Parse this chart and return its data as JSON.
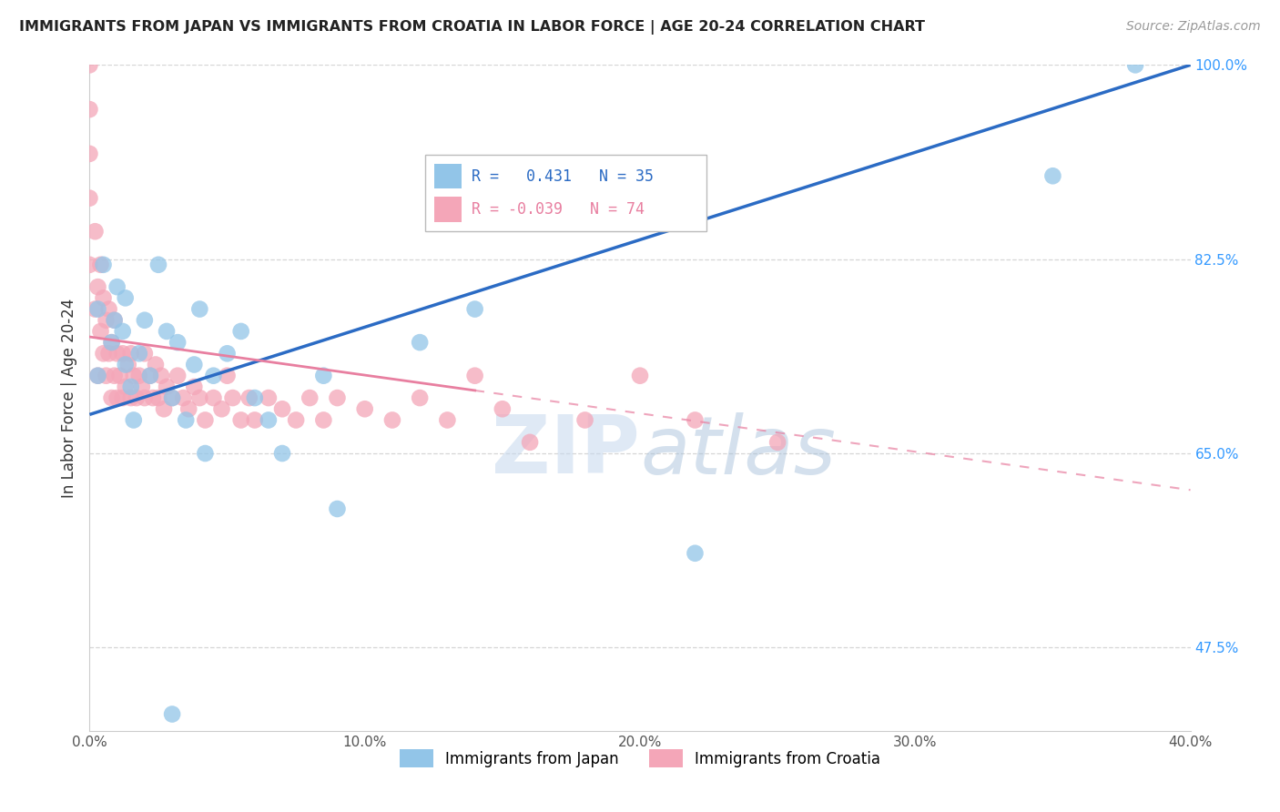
{
  "title": "IMMIGRANTS FROM JAPAN VS IMMIGRANTS FROM CROATIA IN LABOR FORCE | AGE 20-24 CORRELATION CHART",
  "source": "Source: ZipAtlas.com",
  "ylabel_label": "In Labor Force | Age 20-24",
  "xlim": [
    0.0,
    0.4
  ],
  "ylim": [
    0.4,
    1.0
  ],
  "xtick_values": [
    0.0,
    0.1,
    0.2,
    0.3,
    0.4
  ],
  "xtick_labels": [
    "0.0%",
    "10.0%",
    "20.0%",
    "30.0%",
    "40.0%"
  ],
  "ytick_right_values": [
    0.475,
    0.65,
    0.825,
    1.0
  ],
  "ytick_right_labels": [
    "47.5%",
    "65.0%",
    "82.5%",
    "100.0%"
  ],
  "japan_color": "#92c5e8",
  "croatia_color": "#f4a6b8",
  "japan_R": 0.431,
  "japan_N": 35,
  "croatia_R": -0.039,
  "croatia_N": 74,
  "japan_line_color": "#2b6bc4",
  "croatia_line_color": "#e87fa0",
  "grid_color": "#cccccc",
  "background_color": "#ffffff",
  "watermark_zip": "ZIP",
  "watermark_atlas": "atlas",
  "legend_japan_label": "Immigrants from Japan",
  "legend_croatia_label": "Immigrants from Croatia",
  "japan_line_x0": 0.0,
  "japan_line_y0": 0.685,
  "japan_line_x1": 0.4,
  "japan_line_y1": 1.0,
  "croatia_line_x0": 0.0,
  "croatia_line_y0": 0.755,
  "croatia_line_x1": 0.4,
  "croatia_line_y1": 0.617,
  "japan_scatter_x": [
    0.003,
    0.003,
    0.005,
    0.008,
    0.009,
    0.01,
    0.012,
    0.013,
    0.013,
    0.015,
    0.016,
    0.018,
    0.02,
    0.022,
    0.025,
    0.028,
    0.03,
    0.032,
    0.035,
    0.038,
    0.04,
    0.042,
    0.045,
    0.05,
    0.055,
    0.06,
    0.065,
    0.07,
    0.085,
    0.09,
    0.12,
    0.14,
    0.22,
    0.35,
    0.38
  ],
  "japan_scatter_y": [
    0.72,
    0.78,
    0.82,
    0.75,
    0.77,
    0.8,
    0.76,
    0.73,
    0.79,
    0.71,
    0.68,
    0.74,
    0.77,
    0.72,
    0.82,
    0.76,
    0.7,
    0.75,
    0.68,
    0.73,
    0.78,
    0.65,
    0.72,
    0.74,
    0.76,
    0.7,
    0.68,
    0.65,
    0.72,
    0.6,
    0.75,
    0.78,
    0.56,
    0.9,
    1.0
  ],
  "croatia_scatter_x": [
    0.0,
    0.0,
    0.0,
    0.0,
    0.0,
    0.002,
    0.002,
    0.003,
    0.003,
    0.004,
    0.004,
    0.005,
    0.005,
    0.006,
    0.006,
    0.007,
    0.007,
    0.008,
    0.008,
    0.009,
    0.009,
    0.01,
    0.01,
    0.011,
    0.012,
    0.012,
    0.013,
    0.014,
    0.015,
    0.015,
    0.016,
    0.017,
    0.018,
    0.019,
    0.02,
    0.02,
    0.022,
    0.023,
    0.024,
    0.025,
    0.026,
    0.027,
    0.028,
    0.03,
    0.032,
    0.034,
    0.036,
    0.038,
    0.04,
    0.042,
    0.045,
    0.048,
    0.05,
    0.052,
    0.055,
    0.058,
    0.06,
    0.065,
    0.07,
    0.075,
    0.08,
    0.085,
    0.09,
    0.1,
    0.11,
    0.12,
    0.13,
    0.14,
    0.15,
    0.16,
    0.18,
    0.2,
    0.22,
    0.25
  ],
  "croatia_scatter_y": [
    0.82,
    0.88,
    0.92,
    0.96,
    1.0,
    0.78,
    0.85,
    0.72,
    0.8,
    0.76,
    0.82,
    0.74,
    0.79,
    0.72,
    0.77,
    0.74,
    0.78,
    0.7,
    0.75,
    0.72,
    0.77,
    0.7,
    0.74,
    0.72,
    0.7,
    0.74,
    0.71,
    0.73,
    0.7,
    0.74,
    0.72,
    0.7,
    0.72,
    0.71,
    0.7,
    0.74,
    0.72,
    0.7,
    0.73,
    0.7,
    0.72,
    0.69,
    0.71,
    0.7,
    0.72,
    0.7,
    0.69,
    0.71,
    0.7,
    0.68,
    0.7,
    0.69,
    0.72,
    0.7,
    0.68,
    0.7,
    0.68,
    0.7,
    0.69,
    0.68,
    0.7,
    0.68,
    0.7,
    0.69,
    0.68,
    0.7,
    0.68,
    0.72,
    0.69,
    0.66,
    0.68,
    0.72,
    0.68,
    0.66
  ]
}
